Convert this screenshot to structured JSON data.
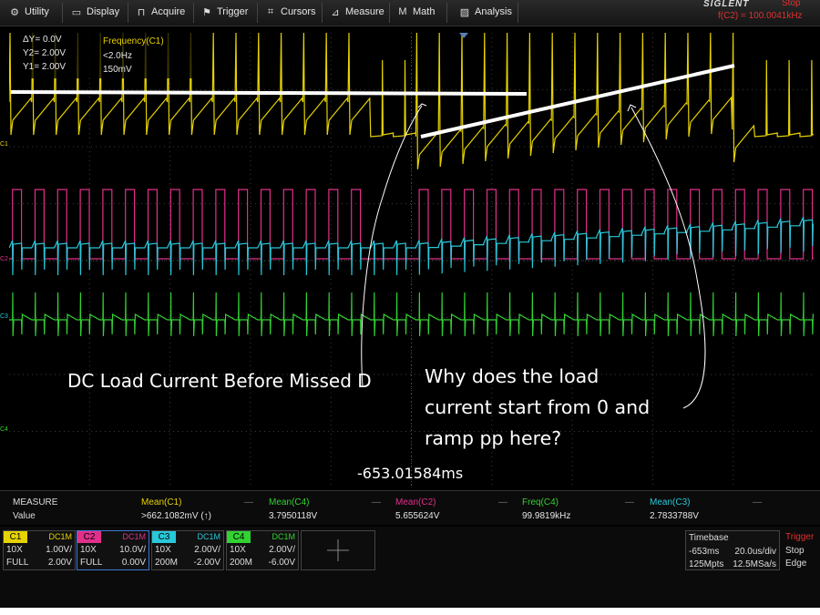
{
  "menu": [
    {
      "label": "Utility",
      "icon": "wrench-icon"
    },
    {
      "label": "Display",
      "icon": "display-icon"
    },
    {
      "label": "Acquire",
      "icon": "acquire-icon"
    },
    {
      "label": "Trigger",
      "icon": "trigger-flag-icon"
    },
    {
      "label": "Cursors",
      "icon": "cursors-icon"
    },
    {
      "label": "Measure",
      "icon": "measure-icon"
    },
    {
      "label": "Math",
      "icon": "math-icon"
    },
    {
      "label": "Analysis",
      "icon": "analysis-icon"
    }
  ],
  "brand": {
    "logo": "SIGLENT",
    "state": "Stop",
    "freq": "f(C2) = 100.0041kHz"
  },
  "cursor_box": {
    "dy": "ΔY= 0.0V",
    "y2": "Y2= 2.00V",
    "y1": "Y1= 2.00V",
    "freq_title": "Frequency(C1)",
    "freq_val": "<2.0Hz",
    "freq_delta": "150mV"
  },
  "annotations": {
    "left": "DC Load Current Before Missed D",
    "right_l1": "Why does the load",
    "right_l2": "current start from 0 and",
    "right_l3": "ramp pp here?"
  },
  "time_position": "-653.01584ms",
  "channel_markers": [
    "C1",
    "C2",
    "C3",
    "C4"
  ],
  "measure": {
    "title": "MEASURE",
    "row_label": "Value",
    "items": [
      {
        "name": "Mean(C1)",
        "value": ">662.1082mV (↑)",
        "color": "#e6d200"
      },
      {
        "name": "Mean(C4)",
        "value": "3.7950118V",
        "color": "#32d232"
      },
      {
        "name": "Mean(C2)",
        "value": "5.655624V",
        "color": "#e0308a"
      },
      {
        "name": "Freq(C4)",
        "value": "99.9819kHz",
        "color": "#32d232"
      },
      {
        "name": "Mean(C3)",
        "value": "2.7833788V",
        "color": "#28c8d8"
      }
    ]
  },
  "channels": [
    {
      "name": "C1",
      "coupling": "DC1M",
      "probe": "10X",
      "scale": "1.00V/",
      "bw": "FULL",
      "offset": "2.00V",
      "color": "#e6d200"
    },
    {
      "name": "C2",
      "coupling": "DC1M",
      "probe": "10X",
      "scale": "10.0V/",
      "bw": "FULL",
      "offset": "0.00V",
      "color": "#e0308a"
    },
    {
      "name": "C3",
      "coupling": "DC1M",
      "probe": "10X",
      "scale": "2.00V/",
      "bw": "200M",
      "offset": "-2.00V",
      "color": "#28c8d8"
    },
    {
      "name": "C4",
      "coupling": "DC1M",
      "probe": "10X",
      "scale": "2.00V/",
      "bw": "200M",
      "offset": "-6.00V",
      "color": "#32d232"
    }
  ],
  "timebase": {
    "title": "Timebase",
    "delay": "-653ms",
    "scale": "20.0us/div",
    "points": "125Mpts",
    "rate": "12.5MSa/s"
  },
  "trigger": {
    "title": "Trigger",
    "state": "Stop",
    "type": "Edge"
  }
}
